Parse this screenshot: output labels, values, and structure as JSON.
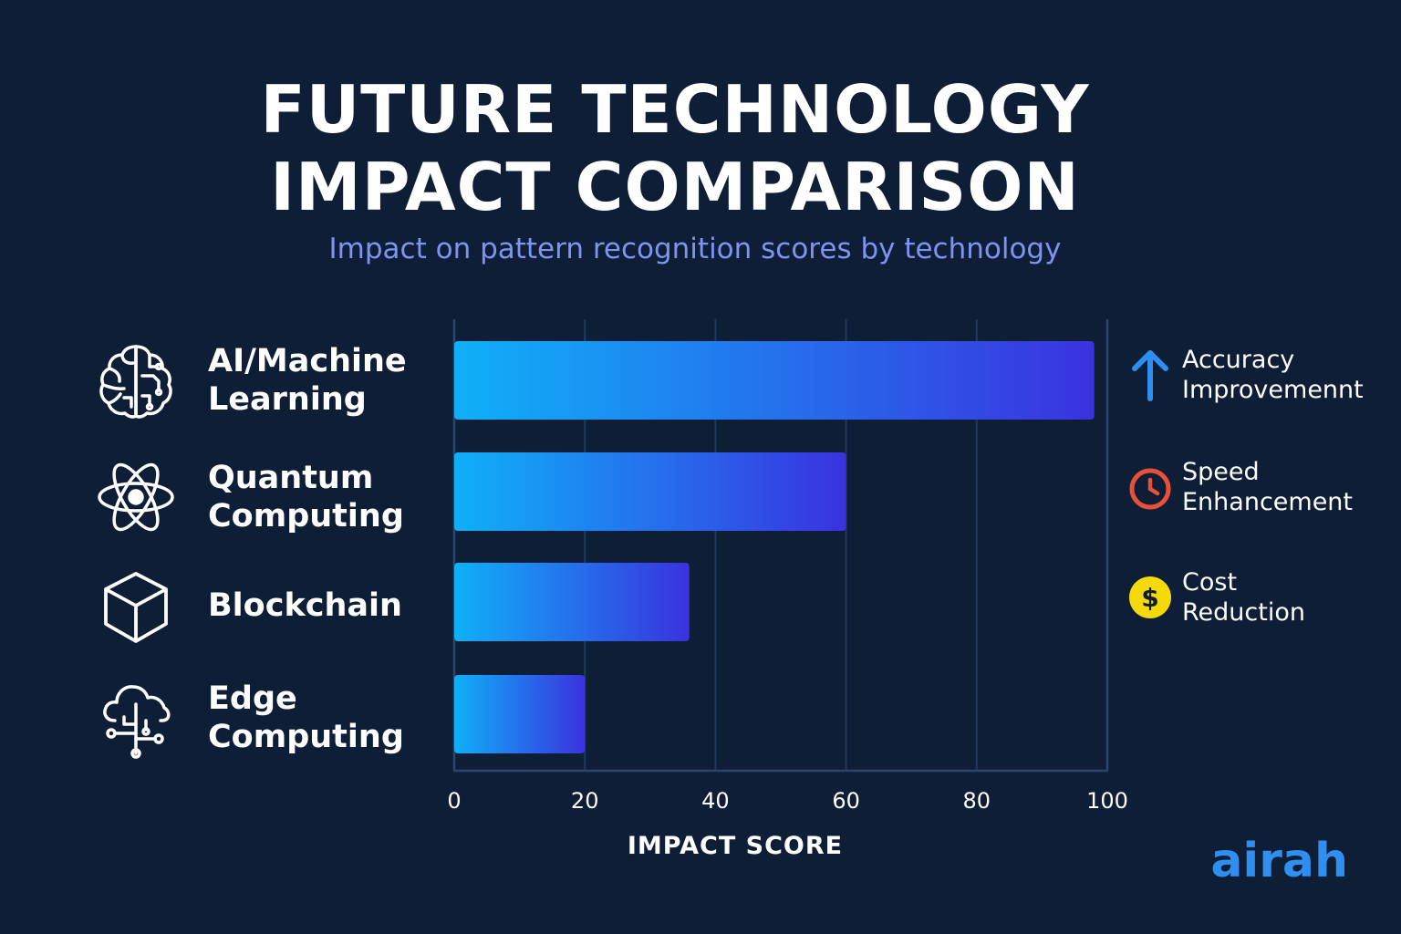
{
  "title_line1": "FUTURE TECHNOLOGY",
  "title_line2": "IMPACT COMPARISON",
  "subtitle": "Impact on pattern recognition scores by technology",
  "categories": [
    {
      "label_line1": "AI/Machine",
      "label_line2": "Learning",
      "icon": "brain-icon"
    },
    {
      "label_line1": "Quantum",
      "label_line2": "Computing",
      "icon": "atom-icon"
    },
    {
      "label_line1": "Blockchain",
      "label_line2": "",
      "icon": "cube-icon"
    },
    {
      "label_line1": "Edge",
      "label_line2": "Computing",
      "icon": "cloud-network-icon"
    }
  ],
  "legend": [
    {
      "line1": "Accuracy",
      "line2": "Improvemennt",
      "icon": "arrow-up-icon",
      "color": "#2f8ff0"
    },
    {
      "line1": "Speed",
      "line2": "Enhancement",
      "icon": "timer-icon",
      "color": "#e8503a"
    },
    {
      "line1": "Cost",
      "line2": "Reduction",
      "icon": "dollar-coin-icon",
      "color": "#f5d90a"
    }
  ],
  "logo": "airah",
  "chart_data": {
    "type": "bar",
    "orientation": "horizontal",
    "categories": [
      "AI/Machine Learning",
      "Quantum Computing",
      "Blockchain",
      "Edge Computing"
    ],
    "values": [
      98,
      60,
      36,
      20
    ],
    "title": "FUTURE TECHNOLOGY IMPACT COMPARISON",
    "subtitle": "Impact on pattern recognition scores by technology",
    "xlabel": "IMPACT SCORE",
    "ylabel": "",
    "xlim": [
      0,
      100
    ],
    "xticks": [
      0,
      20,
      40,
      60,
      80,
      100
    ],
    "xtick_labels": [
      "0",
      "20",
      "40",
      "60",
      "80",
      "100"
    ],
    "grid": true,
    "legend_position": "right",
    "bar_gradient": [
      "#0fb0f8",
      "#3a32e0"
    ],
    "grid_color": "#213a5c"
  }
}
